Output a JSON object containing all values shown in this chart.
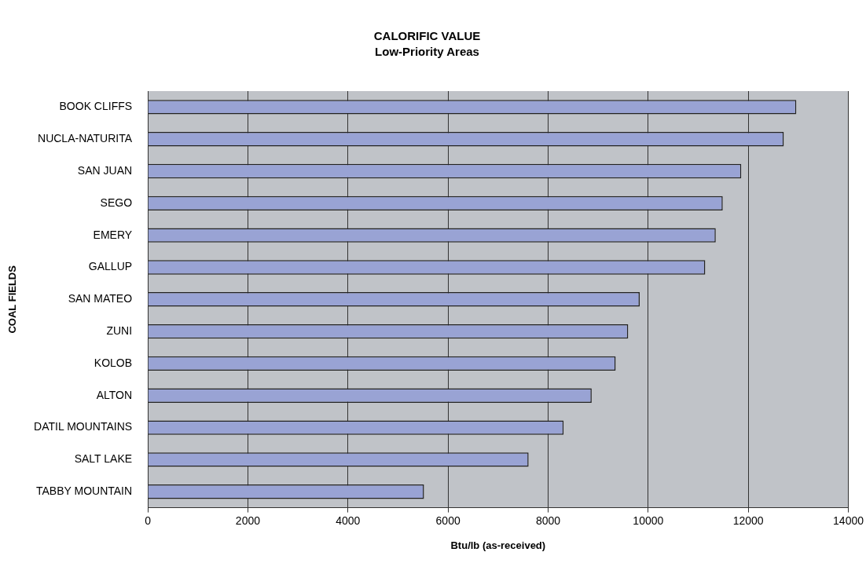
{
  "chart_data": {
    "type": "bar",
    "orientation": "horizontal",
    "title": "CALORIFIC VALUE",
    "subtitle": "Low-Priority Areas",
    "xlabel": "Btu/lb (as-received)",
    "ylabel": "COAL FIELDS",
    "categories": [
      "BOOK CLIFFS",
      "NUCLA-NATURITA",
      "SAN JUAN",
      "SEGO",
      "EMERY",
      "GALLUP",
      "SAN MATEO",
      "ZUNI",
      "KOLOB",
      "ALTON",
      "DATIL MOUNTAINS",
      "SALT LAKE",
      "TABBY MOUNTAIN"
    ],
    "values": [
      12960,
      12710,
      11860,
      11490,
      11350,
      11140,
      9830,
      9600,
      9350,
      8870,
      8310,
      7610,
      5520
    ],
    "color": "#99a3d4",
    "xlim": [
      0,
      14000
    ],
    "xticks": [
      0,
      2000,
      4000,
      6000,
      8000,
      10000,
      12000,
      14000
    ],
    "grid": "x",
    "legend": false
  }
}
